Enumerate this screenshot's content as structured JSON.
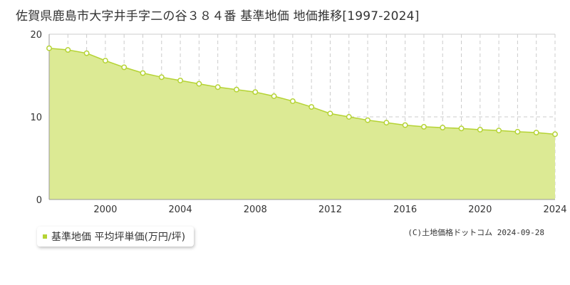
{
  "title": "佐賀県鹿島市大字井手字二の谷３８４番 基準地価 地価推移[1997-2024]",
  "copyright": "(C)土地価格ドットコム 2024-09-28",
  "colors": {
    "area_fill": "#dcea94",
    "line": "#b5d334",
    "point_fill": "#ffffff",
    "grid": "#cccccc",
    "axis_text": "#333333"
  },
  "chart_data": {
    "type": "area",
    "title": "佐賀県鹿島市大字井手字二の谷３８４番 基準地価 地価推移[1997-2024]",
    "x": [
      1997,
      1998,
      1999,
      2000,
      2001,
      2002,
      2003,
      2004,
      2005,
      2006,
      2007,
      2008,
      2009,
      2010,
      2011,
      2012,
      2013,
      2014,
      2015,
      2016,
      2017,
      2018,
      2019,
      2020,
      2021,
      2022,
      2023,
      2024
    ],
    "series": [
      {
        "name": "基準地価 平均坪単価(万円/坪)",
        "values": [
          18.3,
          18.1,
          17.7,
          16.8,
          16.0,
          15.3,
          14.8,
          14.4,
          14.0,
          13.6,
          13.3,
          13.0,
          12.5,
          11.9,
          11.2,
          10.4,
          10.0,
          9.6,
          9.3,
          9.0,
          8.8,
          8.7,
          8.6,
          8.45,
          8.35,
          8.2,
          8.1,
          7.9
        ]
      }
    ],
    "xticks": [
      2000,
      2004,
      2008,
      2012,
      2016,
      2020,
      2024
    ],
    "yticks": [
      0,
      10,
      20
    ],
    "xlim": [
      1997,
      2024
    ],
    "ylim": [
      0,
      20
    ],
    "xlabel": "",
    "ylabel": "",
    "grid": true,
    "legend": "bottom-left"
  }
}
